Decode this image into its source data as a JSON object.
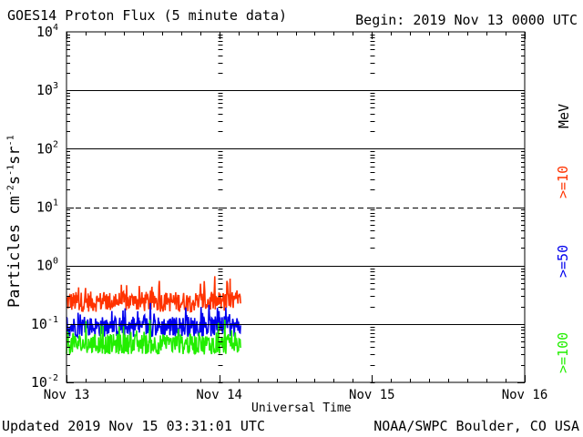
{
  "header": {
    "title": "GOES14 Proton Flux (5 minute data)",
    "begin": "Begin: 2019 Nov 13 0000 UTC"
  },
  "footer": {
    "updated": "Updated 2019 Nov 15 03:31:01 UTC",
    "credit": "NOAA/SWPC Boulder, CO USA"
  },
  "legend": {
    "unit": "MeV",
    "labels": [
      ">=10",
      ">=50",
      ">=100"
    ]
  },
  "colors": {
    "ge10": "#ff3300",
    "ge50": "#0000ee",
    "ge100": "#22ee00",
    "axis": "#000000"
  },
  "chart_data": {
    "type": "line",
    "title": "GOES14 Proton Flux (5 minute data)",
    "xlabel": "Universal Time",
    "ylabel": "Particles cm-2 s-1 sr-1",
    "yscale": "log",
    "ylim": [
      0.01,
      10000
    ],
    "xlim_days": [
      0,
      3
    ],
    "x_tick_labels": [
      "Nov 13",
      "Nov 14",
      "Nov 15",
      "Nov 16"
    ],
    "y_tick_base": "10",
    "y_tick_exponents": [
      "-2",
      "-1",
      "0",
      "1",
      "2",
      "3",
      "4"
    ],
    "reference_lines": [
      {
        "value": 1.0,
        "style": "solid"
      },
      {
        "value": 0.1,
        "style": "solid"
      },
      {
        "value": 10,
        "style": "dashed"
      }
    ],
    "data_end_day": 1.14,
    "series": [
      {
        "name": ">=10 MeV",
        "color": "#ff3300",
        "typical": 0.24,
        "range": [
          0.12,
          0.7
        ]
      },
      {
        "name": ">=50 MeV",
        "color": "#0000ee",
        "typical": 0.09,
        "range": [
          0.055,
          0.3
        ]
      },
      {
        "name": ">=100 MeV",
        "color": "#22ee00",
        "typical": 0.045,
        "range": [
          0.028,
          0.17
        ]
      }
    ]
  }
}
